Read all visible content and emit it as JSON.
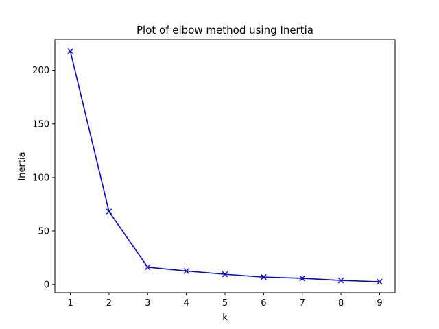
{
  "chart_data": {
    "type": "line",
    "title": "Plot of elbow method using Inertia",
    "xlabel": "k",
    "ylabel": "Inertia",
    "x": [
      1,
      2,
      3,
      4,
      5,
      6,
      7,
      8,
      9
    ],
    "series": [
      {
        "values": [
          217.9,
          68.2,
          16.2,
          12.6,
          9.6,
          7.0,
          5.9,
          3.9,
          2.6
        ],
        "color": "#0000ff",
        "marker": "x"
      }
    ],
    "xticks": [
      1,
      2,
      3,
      4,
      5,
      6,
      7,
      8,
      9
    ],
    "yticks": [
      0,
      50,
      100,
      150,
      200
    ],
    "xlim": [
      0.6,
      9.4
    ],
    "ylim": [
      -7.6,
      228.6
    ],
    "grid": false,
    "legend": "none"
  }
}
